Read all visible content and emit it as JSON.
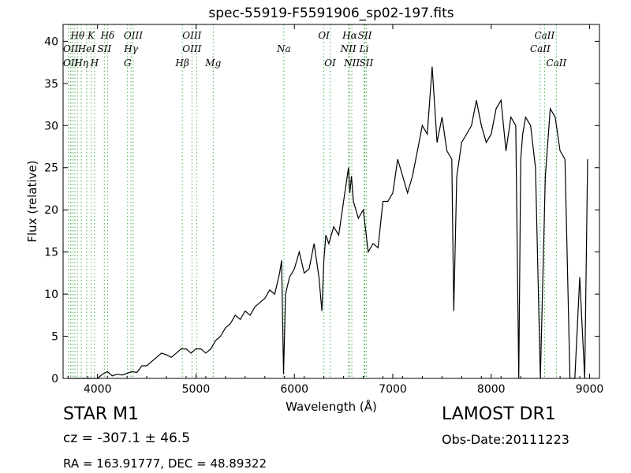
{
  "chart_data": {
    "type": "line",
    "title": "spec-55919-F5591906_sp02-197.fits",
    "xlabel": "Wavelength (Å)",
    "ylabel": "Flux (relative)",
    "xlim": [
      3650,
      9100
    ],
    "ylim": [
      0,
      42
    ],
    "xticks": [
      4000,
      5000,
      6000,
      7000,
      8000,
      9000
    ],
    "yticks": [
      0,
      5,
      10,
      15,
      20,
      25,
      30,
      35,
      40
    ],
    "grid": false,
    "line_color": "#000000",
    "marker_color": "#4caf50",
    "spectrum": {
      "x": [
        3700,
        3750,
        3800,
        3850,
        3900,
        3950,
        4000,
        4050,
        4100,
        4150,
        4200,
        4250,
        4300,
        4350,
        4400,
        4450,
        4500,
        4550,
        4600,
        4650,
        4700,
        4750,
        4800,
        4850,
        4900,
        4950,
        5000,
        5050,
        5100,
        5150,
        5200,
        5250,
        5300,
        5350,
        5400,
        5450,
        5500,
        5550,
        5600,
        5650,
        5700,
        5750,
        5800,
        5850,
        5870,
        5890,
        5910,
        5950,
        6000,
        6050,
        6100,
        6150,
        6200,
        6250,
        6280,
        6300,
        6320,
        6350,
        6400,
        6450,
        6500,
        6550,
        6563,
        6580,
        6600,
        6650,
        6700,
        6750,
        6800,
        6850,
        6900,
        6950,
        7000,
        7050,
        7100,
        7150,
        7200,
        7250,
        7300,
        7350,
        7400,
        7450,
        7500,
        7550,
        7600,
        7620,
        7650,
        7700,
        7750,
        7800,
        7850,
        7900,
        7950,
        8000,
        8050,
        8100,
        8150,
        8200,
        8250,
        8280,
        8300,
        8320,
        8350,
        8400,
        8450,
        8500,
        8550,
        8600,
        8650,
        8700,
        8750,
        8800,
        8850,
        8900,
        8950,
        8980
      ],
      "y": [
        0,
        0,
        0,
        0,
        0,
        0,
        0,
        0.5,
        0.8,
        0.3,
        0.5,
        0.4,
        0.6,
        0.8,
        0.7,
        1.5,
        1.5,
        2.0,
        2.5,
        3.0,
        2.8,
        2.5,
        3.0,
        3.5,
        3.5,
        3.0,
        3.5,
        3.5,
        3.0,
        3.5,
        4.5,
        5.0,
        6.0,
        6.5,
        7.5,
        7.0,
        8.0,
        7.5,
        8.5,
        9.0,
        9.5,
        10.5,
        10.0,
        12.5,
        14.0,
        0.5,
        10.0,
        12.0,
        13.0,
        15.0,
        12.5,
        13.0,
        16.0,
        12.0,
        8.0,
        14.0,
        17.0,
        16.0,
        18.0,
        17.0,
        21.0,
        25.0,
        22.0,
        24.0,
        21.0,
        19.0,
        20.0,
        15.0,
        16.0,
        15.5,
        21.0,
        21.0,
        22.0,
        26.0,
        24.0,
        22.0,
        24.0,
        27.0,
        30.0,
        29.0,
        37.0,
        28.0,
        31.0,
        27.0,
        26.0,
        8.0,
        24.0,
        28.0,
        29.0,
        30.0,
        33.0,
        30.0,
        28.0,
        29.0,
        32.0,
        33.0,
        27.0,
        31.0,
        30.0,
        0,
        26.0,
        29.0,
        31.0,
        30.0,
        25.0,
        0,
        24.0,
        32.0,
        31.0,
        27.0,
        26.0,
        0,
        0,
        12.0,
        0,
        26.0
      ]
    },
    "lines_upper": [
      {
        "label": "Hθ",
        "x": 3797,
        "row": 1
      },
      {
        "label": "K",
        "x": 3934,
        "row": 1
      },
      {
        "label": "Hδ",
        "x": 4102,
        "row": 1
      },
      {
        "label": "OIII",
        "x": 4363,
        "row": 1
      },
      {
        "label": "OIII",
        "x": 4959,
        "row": 1
      },
      {
        "label": "OI",
        "x": 6300,
        "row": 1
      },
      {
        "label": "Hα",
        "x": 6563,
        "row": 1
      },
      {
        "label": "SII",
        "x": 6716,
        "row": 1
      },
      {
        "label": "CaII",
        "x": 8542,
        "row": 1
      },
      {
        "label": "OII",
        "x": 3727,
        "row": 2
      },
      {
        "label": "HeI",
        "x": 3889,
        "row": 2
      },
      {
        "label": "SII",
        "x": 4069,
        "row": 2
      },
      {
        "label": "Hγ",
        "x": 4340,
        "row": 2
      },
      {
        "label": "OIII",
        "x": 4959,
        "row": 2
      },
      {
        "label": "Na",
        "x": 5893,
        "row": 2
      },
      {
        "label": "NII",
        "x": 6548,
        "row": 2
      },
      {
        "label": "Li",
        "x": 6708,
        "row": 2
      },
      {
        "label": "CaII",
        "x": 8498,
        "row": 2
      },
      {
        "label": "OII",
        "x": 3727,
        "row": 3
      },
      {
        "label": "Hη",
        "x": 3835,
        "row": 3
      },
      {
        "label": "H",
        "x": 3969,
        "row": 3
      },
      {
        "label": "G",
        "x": 4305,
        "row": 3
      },
      {
        "label": "Hβ",
        "x": 4861,
        "row": 3
      },
      {
        "label": "Mg",
        "x": 5175,
        "row": 3
      },
      {
        "label": "OI",
        "x": 6363,
        "row": 3
      },
      {
        "label": "NII",
        "x": 6584,
        "row": 3
      },
      {
        "label": "SII",
        "x": 6731,
        "row": 3
      },
      {
        "label": "CaII",
        "x": 8662,
        "row": 3
      }
    ],
    "marker_positions": [
      3704,
      3727,
      3729,
      3750,
      3770,
      3797,
      3835,
      3889,
      3934,
      3969,
      4069,
      4102,
      4305,
      4340,
      4363,
      4861,
      4959,
      5007,
      5175,
      5893,
      6300,
      6363,
      6548,
      6563,
      6584,
      6708,
      6716,
      6731,
      8498,
      8542,
      8662
    ]
  },
  "footer": {
    "object_class": "STAR   M1",
    "cz": "cz = -307.1  ± 46.5",
    "radec": "RA = 163.91777, DEC = 48.89322",
    "survey": "LAMOST DR1",
    "obs_date": "Obs-Date:20111223"
  }
}
